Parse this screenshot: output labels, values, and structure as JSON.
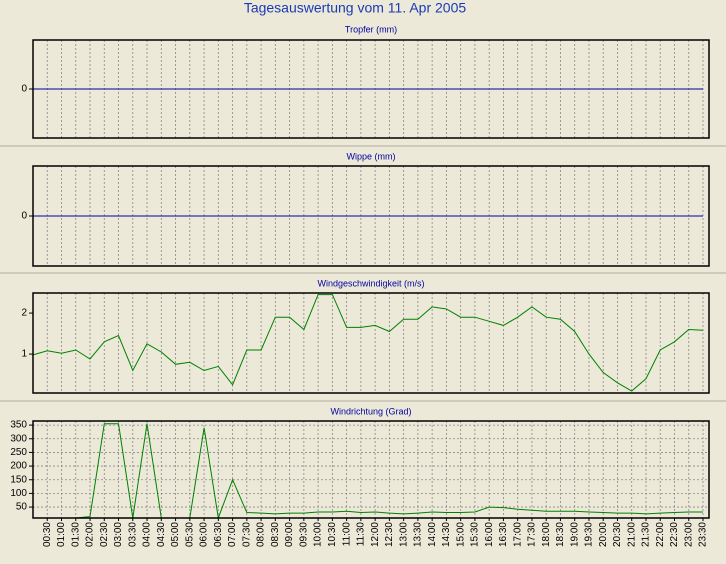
{
  "title": "Tagesauswertung vom 11. Apr 2005",
  "chart_data": [
    {
      "type": "line",
      "title": "Tropfer (mm)",
      "ylim": [
        -1,
        1
      ],
      "yticks": [
        0
      ],
      "grid": false,
      "xgrid": true,
      "series": [
        {
          "color": "#0000a0",
          "values": [
            0,
            0,
            0,
            0,
            0,
            0,
            0,
            0,
            0,
            0,
            0,
            0,
            0,
            0,
            0,
            0,
            0,
            0,
            0,
            0,
            0,
            0,
            0,
            0,
            0,
            0,
            0,
            0,
            0,
            0,
            0,
            0,
            0,
            0,
            0,
            0,
            0,
            0,
            0,
            0,
            0,
            0,
            0,
            0,
            0,
            0,
            0,
            0
          ]
        }
      ]
    },
    {
      "type": "line",
      "title": "Wippe (mm)",
      "ylim": [
        -1,
        1
      ],
      "yticks": [
        0
      ],
      "grid": false,
      "xgrid": true,
      "series": [
        {
          "color": "#0000a0",
          "values": [
            0,
            0,
            0,
            0,
            0,
            0,
            0,
            0,
            0,
            0,
            0,
            0,
            0,
            0,
            0,
            0,
            0,
            0,
            0,
            0,
            0,
            0,
            0,
            0,
            0,
            0,
            0,
            0,
            0,
            0,
            0,
            0,
            0,
            0,
            0,
            0,
            0,
            0,
            0,
            0,
            0,
            0,
            0,
            0,
            0,
            0,
            0,
            0
          ]
        }
      ]
    },
    {
      "type": "line",
      "title": "Windgeschwindigkeit (m/s)",
      "ylim": [
        0.05,
        2.49
      ],
      "yticks": [
        1,
        2
      ],
      "grid": false,
      "xgrid": true,
      "series": [
        {
          "color": "#008000",
          "values": [
            0.98,
            1.08,
            1.02,
            1.1,
            0.88,
            1.3,
            1.45,
            0.6,
            1.25,
            1.05,
            0.75,
            0.8,
            0.6,
            0.7,
            0.25,
            1.1,
            1.1,
            1.9,
            1.9,
            1.6,
            2.45,
            2.45,
            1.65,
            1.65,
            1.7,
            1.55,
            1.85,
            1.85,
            2.15,
            2.1,
            1.9,
            1.9,
            1.8,
            1.7,
            1.9,
            2.15,
            1.9,
            1.85,
            1.55,
            1.0,
            0.55,
            0.3,
            0.1,
            0.4,
            1.1,
            1.3,
            1.6,
            1.58
          ]
        }
      ]
    },
    {
      "type": "line",
      "title": "Windrichtung (Grad)",
      "ylim": [
        10,
        365
      ],
      "yticks": [
        50,
        100,
        150,
        200,
        250,
        300,
        350
      ],
      "grid": true,
      "xgrid": true,
      "categories": [
        null,
        "00:30",
        "01:00",
        "01:30",
        "02:00",
        "02:30",
        "03:00",
        "03:30",
        "04:00",
        "04:30",
        "05:00",
        "05:30",
        "06:00",
        "06:30",
        "07:00",
        "07:30",
        "08:00",
        "08:30",
        "09:00",
        "09:30",
        "10:00",
        "10:30",
        "11:00",
        "11:30",
        "12:00",
        "12:30",
        "13:00",
        "13:30",
        "14:00",
        "14:30",
        "15:00",
        "15:30",
        "16:00",
        "16:30",
        "17:00",
        "17:30",
        "18:00",
        "18:30",
        "19:00",
        "19:30",
        "20:00",
        "20:30",
        "21:00",
        "21:30",
        "22:00",
        "22:30",
        "23:00",
        "23:30"
      ],
      "series": [
        {
          "color": "#008000",
          "values": [
            10,
            10,
            10,
            10,
            15,
            355,
            355,
            10,
            355,
            10,
            10,
            10,
            340,
            10,
            150,
            30,
            28,
            25,
            28,
            28,
            32,
            32,
            35,
            30,
            32,
            28,
            25,
            28,
            32,
            30,
            30,
            32,
            50,
            48,
            42,
            38,
            35,
            35,
            35,
            32,
            30,
            28,
            28,
            25,
            28,
            30,
            32,
            32
          ]
        }
      ]
    }
  ]
}
